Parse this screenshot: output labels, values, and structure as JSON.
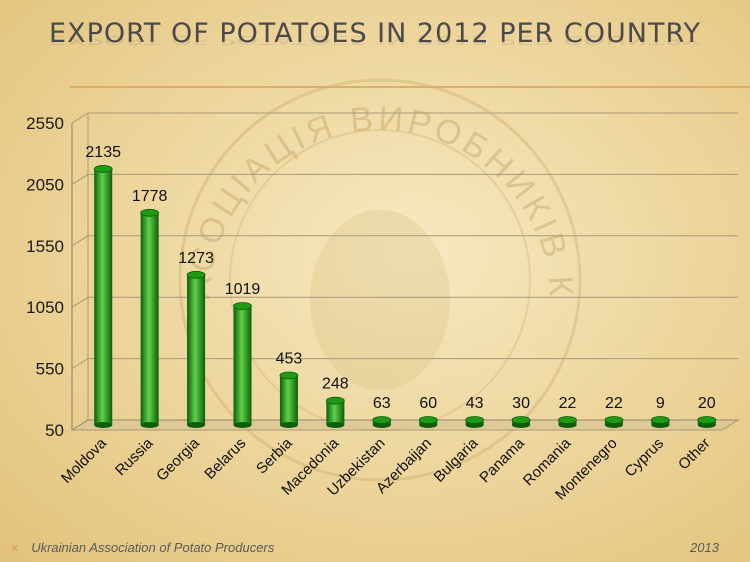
{
  "slide": {
    "title": "EXPORT OF POTATOES IN 2012  PER COUNTRY",
    "footer_left": "Ukrainian Association of Potato Producers",
    "footer_right": "2013",
    "footer_bullet_icon": "x-bullet-icon",
    "watermark_text": "АСОЦІАЦІЯ ВИРОБНИКІВ КАРТОПЛІ"
  },
  "chart_data": {
    "type": "bar",
    "categories": [
      "Moldova",
      "Russia",
      "Georgia",
      "Belarus",
      "Serbia",
      "Macedonia",
      "Uzbekistan",
      "Azerbaijan",
      "Bulgaria",
      "Panama",
      "Romania",
      "Montenegro",
      "Cyprus",
      "Other"
    ],
    "values": [
      2135,
      1778,
      1273,
      1019,
      453,
      248,
      63,
      60,
      43,
      30,
      22,
      22,
      9,
      20
    ],
    "title": "EXPORT OF POTATOES IN 2012  PER COUNTRY",
    "xlabel": "",
    "ylabel": "",
    "ylim": [
      50,
      2550
    ],
    "yticks": [
      50,
      550,
      1050,
      1550,
      2050,
      2550
    ],
    "grid": true,
    "data_labels": true,
    "bar_color": "#1f9a14",
    "bar_dark": "#0d5e08",
    "bar_light": "#5fd24a"
  }
}
